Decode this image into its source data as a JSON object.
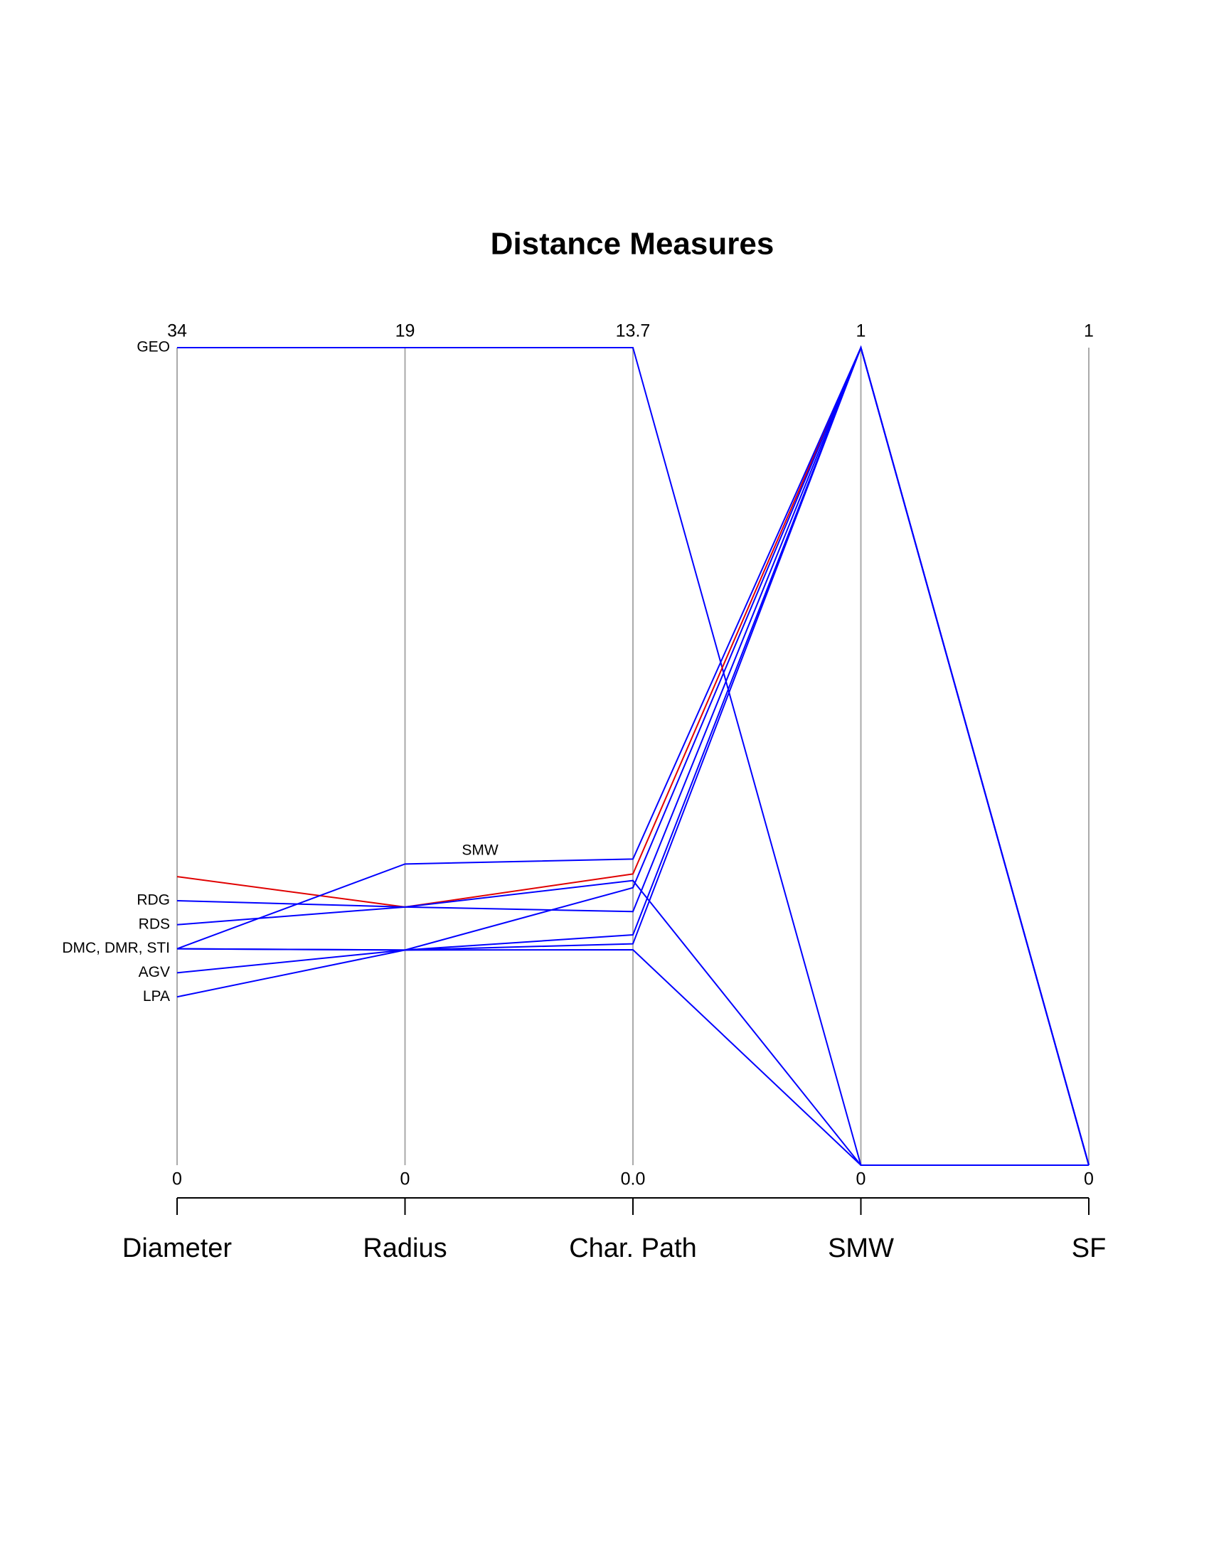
{
  "chart_data": {
    "type": "parallel",
    "title": "Distance Measures",
    "axes": [
      {
        "label": "Diameter",
        "lim": [
          0,
          34
        ],
        "ticks": [
          0,
          34
        ]
      },
      {
        "label": "Radius",
        "lim": [
          0,
          19
        ],
        "ticks": [
          0,
          19
        ]
      },
      {
        "label": "Char. Path",
        "lim": [
          0,
          13.7
        ],
        "ticks": [
          {
            "value": 0,
            "label": "0.0"
          },
          13.7
        ]
      },
      {
        "label": "SMW",
        "lim": [
          0,
          1
        ],
        "ticks": [
          0,
          1
        ]
      },
      {
        "label": "SF",
        "lim": [
          0,
          1
        ],
        "ticks": [
          0,
          1
        ]
      }
    ],
    "line_labels": [
      {
        "value": 34,
        "label": "GEO"
      },
      {
        "value": 11,
        "label": "RDG"
      },
      {
        "value": 10,
        "label": "RDS"
      },
      {
        "value": 9,
        "label": "DMC, DMR, STI"
      },
      {
        "value": 8,
        "label": "AGV"
      },
      {
        "value": 7,
        "label": "LPA"
      }
    ],
    "annotation": "SMW",
    "series": [
      {
        "color": "#0000ff",
        "values": [
          34,
          19,
          13.7,
          0,
          0
        ]
      },
      {
        "color": "#e00000",
        "values": [
          12,
          6,
          4.88,
          1,
          0
        ]
      },
      {
        "color": "#0000ff",
        "values": [
          11,
          6,
          4.25,
          1,
          0
        ]
      },
      {
        "color": "#0000ff",
        "values": [
          10,
          6,
          4.77,
          0,
          0
        ]
      },
      {
        "color": "#0000ff",
        "values": [
          9,
          7,
          5.13,
          1,
          0
        ]
      },
      {
        "color": "#0000ff",
        "values": [
          9,
          5,
          4.65,
          1,
          0
        ]
      },
      {
        "color": "#0000ff",
        "values": [
          9,
          5,
          3.61,
          0,
          0
        ]
      },
      {
        "color": "#0000ff",
        "values": [
          8,
          5,
          3.86,
          1,
          0
        ]
      },
      {
        "color": "#0000ff",
        "values": [
          7,
          5,
          3.71,
          1,
          0
        ]
      }
    ]
  }
}
